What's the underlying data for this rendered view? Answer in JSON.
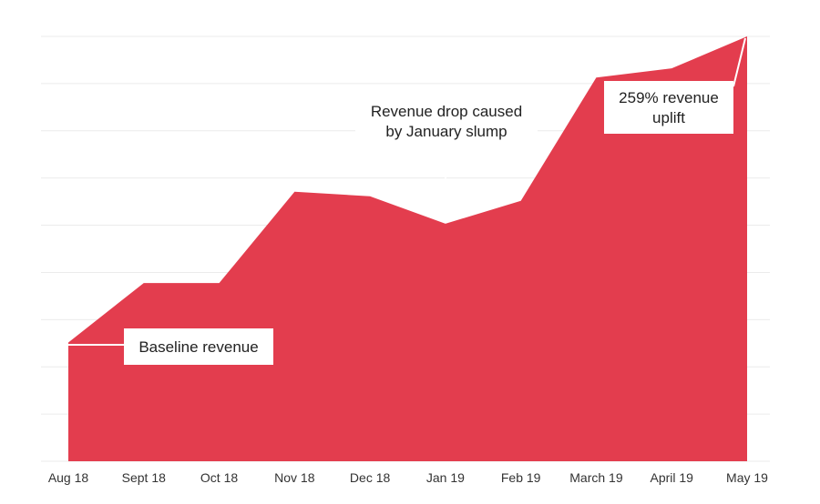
{
  "chart_data": {
    "type": "area",
    "categories": [
      "Aug 18",
      "Sept 18",
      "Oct 18",
      "Nov 18",
      "Dec 18",
      "Jan 19",
      "Feb 19",
      "March 19",
      "April 19",
      "May 19"
    ],
    "series": [
      {
        "values": [
          26,
          39,
          39,
          59,
          58,
          52,
          57,
          84,
          86,
          93
        ]
      }
    ],
    "ylim": [
      0,
      93
    ],
    "grid": true,
    "legend": "none",
    "colors": {
      "area": "#e33d4e",
      "grid": "#ebebeb",
      "annotation_line": "#ffffff",
      "annotation_box": "#ffffff"
    },
    "annotations": [
      {
        "lines": [
          "Baseline revenue"
        ],
        "category": "Aug 18"
      },
      {
        "lines": [
          "Revenue drop caused",
          "by January slump"
        ],
        "category": "Jan 19"
      },
      {
        "lines": [
          "259% revenue",
          "uplift"
        ],
        "category": "May 19"
      }
    ]
  }
}
